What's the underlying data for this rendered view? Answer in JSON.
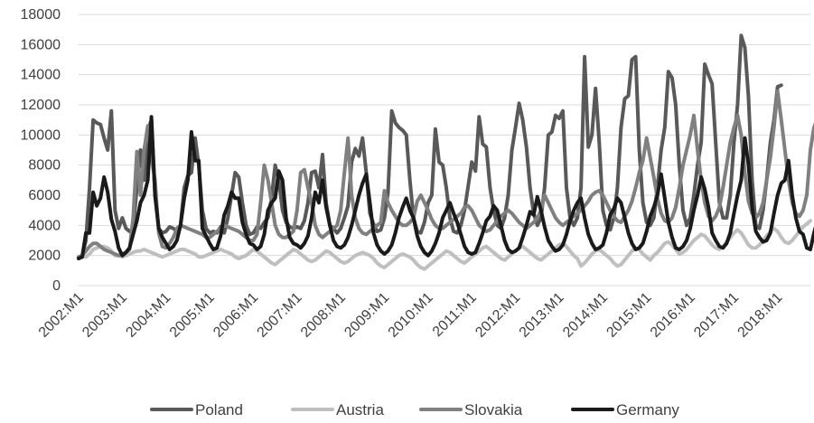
{
  "chart_data": {
    "type": "line",
    "title": "",
    "xlabel": "",
    "ylabel": "",
    "ylim": [
      0,
      18000
    ],
    "yticks": [
      0,
      2000,
      4000,
      6000,
      8000,
      10000,
      12000,
      14000,
      16000,
      18000
    ],
    "xticks": [
      "2002:M1",
      "2003:M1",
      "2004:M1",
      "2005:M1",
      "2006:M1",
      "2007:M1",
      "2008:M1",
      "2009:M1",
      "2010:M1",
      "2011:M1",
      "2012:M1",
      "2013:M1",
      "2014:M1",
      "2015:M1",
      "2016:M1",
      "2017:M1",
      "2018:M1"
    ],
    "grid": true,
    "legend": "bottom",
    "n_points": 202,
    "series": [
      {
        "name": "Poland",
        "color": "#595959",
        "width": 4,
        "values": [
          1900,
          2000,
          3000,
          6500,
          11000,
          10800,
          10700,
          9800,
          9000,
          11600,
          5000,
          3800,
          4500,
          3800,
          3600,
          3800,
          6500,
          9000,
          7000,
          10300,
          11000,
          6000,
          3800,
          3500,
          3600,
          3900,
          3800,
          3600,
          4000,
          6500,
          7300,
          7500,
          9800,
          8000,
          5000,
          3800,
          3500,
          3600,
          3500,
          3900,
          3500,
          4500,
          6000,
          7500,
          7200,
          5500,
          4000,
          3400,
          3500,
          3900,
          3800,
          4200,
          4500,
          5800,
          8000,
          7000,
          5000,
          4200,
          3900,
          3800,
          3900,
          3800,
          4300,
          5500,
          7500,
          7600,
          6500,
          8700,
          5500,
          4000,
          3800,
          3500,
          3800,
          4500,
          5300,
          8200,
          9100,
          8600,
          9800,
          7500,
          4800,
          4100,
          3600,
          3700,
          4500,
          6200,
          11600,
          10800,
          10500,
          10300,
          10000,
          7000,
          4500,
          3600,
          3500,
          4200,
          5500,
          6000,
          10400,
          8200,
          8000,
          6500,
          4500,
          3600,
          3500,
          4000,
          5000,
          6600,
          8200,
          7600,
          11200,
          9400,
          9200,
          6500,
          5000,
          4000,
          3800,
          4500,
          6000,
          9000,
          10500,
          12100,
          11000,
          9200,
          6500,
          4800,
          4000,
          4500,
          6500,
          10000,
          10200,
          11300,
          11100,
          11600,
          6500,
          4500,
          4000,
          4500,
          6500,
          15200,
          9200,
          10000,
          13100,
          9500,
          5000,
          4000,
          3700,
          4500,
          6500,
          10500,
          12400,
          12600,
          15000,
          15200,
          9000,
          5500,
          4200,
          4000,
          4500,
          6500,
          9000,
          10500,
          14200,
          13800,
          12000,
          8000,
          5000,
          4000,
          4500,
          6000,
          8000,
          9500,
          14700,
          14000,
          13400,
          9500,
          5500,
          4500,
          4500,
          6000,
          9500,
          12000,
          16600,
          15800,
          12500,
          7000,
          4000,
          3800,
          5000,
          7000,
          9500,
          11000,
          13200,
          13300
        ]
      },
      {
        "name": "Austria",
        "color": "#bfbfbf",
        "width": 4,
        "values": [
          1800,
          1900,
          1900,
          2100,
          2400,
          2500,
          2600,
          2600,
          2500,
          2300,
          2000,
          2000,
          1900,
          2000,
          2100,
          2200,
          2300,
          2300,
          2400,
          2300,
          2200,
          2100,
          2000,
          1900,
          2000,
          2100,
          2200,
          2300,
          2400,
          2400,
          2300,
          2200,
          2100,
          1900,
          1900,
          2000,
          2100,
          2200,
          2300,
          2400,
          2300,
          2200,
          2100,
          1900,
          1800,
          1900,
          2000,
          2200,
          2400,
          2300,
          2100,
          1900,
          1700,
          1500,
          1400,
          1600,
          1800,
          2000,
          2200,
          2400,
          2300,
          2100,
          1900,
          1700,
          1600,
          1700,
          1900,
          2100,
          2300,
          2200,
          2000,
          1800,
          1600,
          1500,
          1600,
          1800,
          2000,
          2100,
          2200,
          2100,
          2000,
          1800,
          1500,
          1300,
          1200,
          1400,
          1600,
          1800,
          2000,
          2100,
          2000,
          1900,
          1700,
          1400,
          1200,
          1100,
          1300,
          1500,
          1700,
          1900,
          2100,
          2300,
          2200,
          2000,
          1800,
          1600,
          1500,
          1700,
          1900,
          2100,
          2300,
          2500,
          2600,
          2400,
          2200,
          2000,
          1800,
          1700,
          1900,
          2100,
          2300,
          2500,
          2600,
          2400,
          2200,
          2000,
          1800,
          1700,
          1900,
          2100,
          2300,
          2500,
          2700,
          2800,
          2600,
          2300,
          2000,
          1800,
          1300,
          1500,
          1800,
          2100,
          2300,
          2400,
          2200,
          2000,
          1800,
          1500,
          1300,
          1400,
          1700,
          2000,
          2300,
          2500,
          2400,
          2100,
          1900,
          1700,
          2000,
          2200,
          2500,
          2800,
          2900,
          2700,
          2400,
          2100,
          2200,
          2400,
          2700,
          3000,
          3200,
          3400,
          3300,
          3000,
          2700,
          2500,
          2400,
          2600,
          2900,
          3200,
          3500,
          3700,
          3500,
          3100,
          2700,
          2500,
          2500,
          2700,
          3000,
          3300,
          3600,
          3800,
          3600,
          3200,
          2900,
          2800,
          3000,
          3300,
          3600,
          3900,
          4100,
          4300
        ]
      },
      {
        "name": "Slovakia",
        "color": "#808080",
        "width": 4,
        "values": [
          1900,
          2000,
          2300,
          2600,
          2800,
          2800,
          2600,
          2400,
          2300,
          2200,
          2100,
          2000,
          2100,
          2200,
          2400,
          4500,
          8900,
          6000,
          9000,
          10600,
          8500,
          7000,
          3500,
          2600,
          2500,
          2800,
          3200,
          3800,
          4000,
          3900,
          3800,
          3700,
          3600,
          3500,
          3400,
          3200,
          3200,
          3400,
          3600,
          3800,
          4000,
          3900,
          3800,
          3700,
          3600,
          3400,
          3200,
          3000,
          3000,
          3400,
          5500,
          8000,
          7000,
          5500,
          4000,
          3400,
          3200,
          3200,
          3400,
          3600,
          5000,
          7500,
          7700,
          6500,
          5500,
          4000,
          3400,
          3200,
          3400,
          3600,
          3800,
          4000,
          5000,
          7500,
          9800,
          6000,
          4500,
          3800,
          3500,
          3400,
          3600,
          3800,
          4000,
          4200,
          6300,
          5500,
          5000,
          4600,
          4200,
          4000,
          4000,
          4200,
          4500,
          5600,
          6000,
          5500,
          5000,
          4400,
          4000,
          3800,
          3800,
          4000,
          4200,
          4400,
          4600,
          4800,
          5200,
          5300,
          5000,
          4500,
          4000,
          3800,
          3600,
          3700,
          4000,
          4300,
          4600,
          4800,
          5000,
          4800,
          4500,
          4200,
          4000,
          3800,
          4000,
          4200,
          4500,
          5000,
          6000,
          5500,
          5000,
          4500,
          4200,
          4000,
          4200,
          4400,
          4600,
          4800,
          5000,
          5300,
          5600,
          6000,
          6200,
          6300,
          6000,
          5500,
          5000,
          4600,
          4300,
          4200,
          4600,
          5000,
          5600,
          6500,
          7500,
          8300,
          9800,
          8500,
          7200,
          5800,
          4800,
          4300,
          4200,
          4500,
          5200,
          6500,
          8000,
          9000,
          10000,
          11300,
          9000,
          7000,
          5500,
          4600,
          4300,
          4600,
          5200,
          6500,
          8000,
          9500,
          10500,
          11300,
          10000,
          7500,
          5600,
          4800,
          4500,
          4800,
          5500,
          7000,
          8500,
          10500,
          12900,
          11000,
          9000,
          7000,
          5500,
          4800,
          4600,
          5000,
          6000,
          9000,
          10500,
          11200
        ]
      },
      {
        "name": "Germany",
        "color": "#1a1a1a",
        "width": 4,
        "values": [
          1800,
          1900,
          3500,
          3500,
          6200,
          5300,
          5800,
          7200,
          6200,
          4400,
          3600,
          2500,
          2000,
          2200,
          2500,
          3400,
          4300,
          5500,
          6000,
          7000,
          11200,
          6000,
          3800,
          3200,
          2800,
          2400,
          2600,
          3000,
          4000,
          5800,
          7000,
          10200,
          8300,
          8300,
          3800,
          3300,
          2800,
          2400,
          2500,
          3300,
          4700,
          5300,
          6200,
          5800,
          5800,
          4200,
          3400,
          2800,
          2700,
          2400,
          2600,
          3400,
          5000,
          5500,
          5800,
          7600,
          7000,
          4500,
          3200,
          2800,
          2700,
          2500,
          2800,
          3300,
          4500,
          6200,
          5500,
          7000,
          5200,
          4000,
          3000,
          2600,
          2500,
          2700,
          3200,
          4000,
          5000,
          6000,
          6800,
          7400,
          5500,
          3500,
          2700,
          2300,
          2100,
          2300,
          2700,
          3500,
          4500,
          5200,
          5800,
          5000,
          4500,
          3300,
          2600,
          2200,
          2000,
          2300,
          2800,
          3500,
          4500,
          5000,
          5500,
          4800,
          4200,
          3400,
          2600,
          2200,
          2100,
          2200,
          2800,
          3500,
          4300,
          4600,
          5300,
          5000,
          4000,
          3000,
          2400,
          2200,
          2300,
          2500,
          3200,
          4000,
          4900,
          4700,
          5900,
          5000,
          3900,
          3000,
          2600,
          2300,
          2400,
          2700,
          3400,
          4300,
          5000,
          5500,
          5800,
          4500,
          3400,
          2800,
          2400,
          2500,
          2700,
          3500,
          4700,
          5100,
          5800,
          5500,
          4500,
          3500,
          2800,
          2400,
          2500,
          2800,
          3600,
          4600,
          5200,
          6000,
          7400,
          5800,
          4200,
          3200,
          2500,
          2400,
          2600,
          3000,
          3800,
          5000,
          6000,
          7200,
          6400,
          5200,
          3500,
          3000,
          2600,
          2500,
          2800,
          3500,
          4800,
          6000,
          7000,
          9800,
          8000,
          5200,
          3600,
          3200,
          2900,
          3000,
          3500,
          4800,
          6000,
          6800,
          7000,
          8300,
          6000,
          4500,
          3600,
          3400,
          2500,
          2400,
          3500,
          4400,
          5500,
          6800
        ]
      }
    ]
  }
}
